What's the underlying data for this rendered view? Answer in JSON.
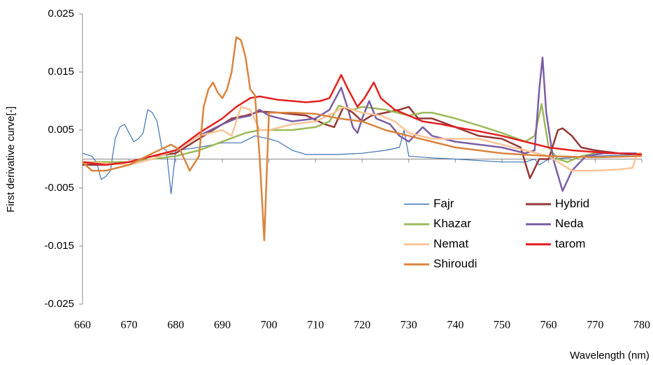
{
  "chart_data": {
    "type": "line",
    "xlabel": "Wavelength (nm)",
    "ylabel": "First derivative curve[-]",
    "xlim": [
      660,
      780
    ],
    "xticks": [
      660,
      670,
      680,
      690,
      700,
      710,
      720,
      730,
      740,
      750,
      760,
      770,
      780
    ],
    "ylim": [
      -0.025,
      0.025
    ],
    "yticks": [
      -0.025,
      -0.015,
      -0.005,
      0.005,
      0.015,
      0.025
    ],
    "legend": "lower right",
    "series": [
      {
        "name": "Fajr",
        "color": "#3d72b4",
        "x": [
          660,
          662,
          663,
          664,
          665,
          666,
          667,
          668,
          669,
          671,
          672,
          673,
          674,
          675,
          676,
          677,
          678,
          679,
          680,
          685,
          690,
          694,
          697,
          700,
          702,
          705,
          708,
          715,
          720,
          725,
          728,
          729,
          730,
          735,
          740,
          750,
          755,
          757,
          758,
          760,
          770,
          780
        ],
        "values": [
          0.001,
          0.0005,
          -0.0005,
          -0.0035,
          -0.003,
          -0.002,
          0.0035,
          0.0055,
          0.006,
          0.003,
          0.0035,
          0.0045,
          0.0085,
          0.008,
          0.0065,
          0.002,
          0.0015,
          -0.006,
          0.0015,
          0.002,
          0.0028,
          0.0028,
          0.004,
          0.0035,
          0.003,
          0.0015,
          0.0008,
          0.0008,
          0.001,
          0.0015,
          0.002,
          0.005,
          0.0005,
          0.0002,
          0,
          -0.0005,
          -0.0005,
          0,
          -0.001,
          0,
          0.0005,
          0.0008
        ]
      },
      {
        "name": "Hybrid",
        "color": "#953735",
        "x": [
          660,
          665,
          670,
          675,
          680,
          684,
          688,
          692,
          695,
          698,
          702,
          708,
          712,
          714,
          716,
          718,
          720,
          722,
          725,
          728,
          730,
          732,
          735,
          740,
          745,
          750,
          754,
          756,
          758,
          760,
          762,
          763,
          765,
          767,
          770,
          775,
          780
        ],
        "values": [
          -0.001,
          -0.001,
          -0.0005,
          0.0005,
          0.001,
          0.003,
          0.005,
          0.007,
          0.0075,
          0.0082,
          0.008,
          0.0075,
          0.006,
          0.0055,
          0.009,
          0.008,
          0.0065,
          0.0075,
          0.008,
          0.0085,
          0.009,
          0.007,
          0.007,
          0.0055,
          0.004,
          0.0035,
          0.002,
          -0.0033,
          0,
          0,
          0.005,
          0.0053,
          0.004,
          0.002,
          0.0015,
          0.001,
          0.0008
        ]
      },
      {
        "name": "Khazar",
        "color": "#9bbb59",
        "x": [
          660,
          670,
          675,
          680,
          685,
          690,
          695,
          698,
          702,
          705,
          710,
          713,
          715,
          718,
          720,
          725,
          730,
          733,
          735,
          740,
          745,
          750,
          755,
          757,
          758.5,
          760,
          762,
          764,
          767,
          770,
          775,
          780
        ],
        "values": [
          -0.0005,
          -0.0005,
          0,
          0.0005,
          0.0015,
          0.003,
          0.0045,
          0.005,
          0.005,
          0.005,
          0.0055,
          0.0065,
          0.0092,
          0.0085,
          0.009,
          0.0085,
          0.0075,
          0.008,
          0.008,
          0.007,
          0.0058,
          0.0045,
          0.003,
          0.004,
          0.0095,
          0.002,
          0,
          -0.0005,
          0.0005,
          0.001,
          0.001,
          0.001
        ]
      },
      {
        "name": "Neda",
        "color": "#7b5ea7",
        "x": [
          660,
          665,
          670,
          675,
          680,
          685,
          690,
          693,
          696,
          698,
          700,
          705,
          710,
          713,
          715.5,
          717,
          718,
          719,
          720,
          721.5,
          723,
          726,
          728,
          730,
          733,
          735,
          740,
          745,
          750,
          755,
          757,
          758,
          758.7,
          759.5,
          761,
          763,
          765,
          768,
          772,
          780
        ],
        "values": [
          -0.0005,
          -0.001,
          -0.0005,
          0.0005,
          0.0015,
          0.004,
          0.006,
          0.007,
          0.0075,
          0.0085,
          0.0075,
          0.0065,
          0.007,
          0.0085,
          0.0123,
          0.0085,
          0.0055,
          0.0045,
          0.007,
          0.01,
          0.007,
          0.006,
          0.004,
          0.003,
          0.0055,
          0.004,
          0.003,
          0.0025,
          0.002,
          0.001,
          0.0015,
          0.012,
          0.0175,
          0.008,
          0,
          -0.0055,
          -0.002,
          0.0005,
          0.001,
          0.001
        ]
      },
      {
        "name": "Nemat",
        "color": "#f9c597",
        "x": [
          660,
          670,
          675,
          680,
          685,
          690,
          692,
          694,
          696,
          698,
          700,
          705,
          710,
          714,
          716,
          720,
          724,
          727,
          730,
          735,
          740,
          745,
          750,
          755,
          760,
          765,
          770,
          775,
          778,
          779,
          780
        ],
        "values": [
          -0.0005,
          -0.001,
          0,
          0.0015,
          0.004,
          0.005,
          0.004,
          0.009,
          0.0085,
          0.005,
          0.005,
          0.006,
          0.0065,
          0.008,
          0.009,
          0.008,
          0.0075,
          0.0065,
          0.0045,
          0.0035,
          0.0035,
          0.0035,
          0.0025,
          0.0015,
          0.0005,
          -0.002,
          -0.002,
          -0.0018,
          -0.0015,
          0.001,
          0.001
        ]
      },
      {
        "name": "tarom",
        "color": "#e3201f",
        "x": [
          660,
          665,
          670,
          675,
          680,
          685,
          690,
          693,
          696,
          698,
          702,
          708,
          711,
          713,
          715.5,
          717,
          719,
          720.5,
          722.5,
          724,
          727,
          730,
          733,
          737,
          740,
          745,
          750,
          755,
          760,
          765,
          770,
          775,
          780
        ],
        "values": [
          -0.0005,
          -0.001,
          -0.0005,
          0.0005,
          0.0015,
          0.0045,
          0.007,
          0.009,
          0.0105,
          0.0108,
          0.0102,
          0.0098,
          0.01,
          0.0105,
          0.0145,
          0.012,
          0.009,
          0.0105,
          0.0132,
          0.0105,
          0.0085,
          0.0075,
          0.0065,
          0.006,
          0.0055,
          0.0048,
          0.004,
          0.003,
          0.002,
          0.0015,
          0.0012,
          0.001,
          0.0008
        ]
      },
      {
        "name": "Shiroudi",
        "color": "#d9843d",
        "x": [
          660,
          662,
          665,
          670,
          675,
          679,
          681,
          683,
          685,
          686,
          687,
          688,
          689,
          690,
          691,
          692,
          693,
          694,
          695,
          696,
          697,
          698,
          699,
          700,
          705,
          710,
          715,
          720,
          725,
          730,
          735,
          740,
          745,
          750,
          760,
          770,
          780
        ],
        "values": [
          -0.0005,
          -0.002,
          -0.002,
          -0.001,
          0.001,
          0.0025,
          0.0015,
          -0.002,
          0.0005,
          0.009,
          0.012,
          0.0132,
          0.0115,
          0.0105,
          0.012,
          0.015,
          0.021,
          0.0205,
          0.0175,
          0.012,
          0.011,
          0.0005,
          -0.014,
          0.008,
          0.008,
          0.0078,
          0.007,
          0.0065,
          0.005,
          0.004,
          0.003,
          0.002,
          0.0015,
          0.001,
          0.0005,
          0.0003,
          0.0005
        ]
      }
    ]
  }
}
